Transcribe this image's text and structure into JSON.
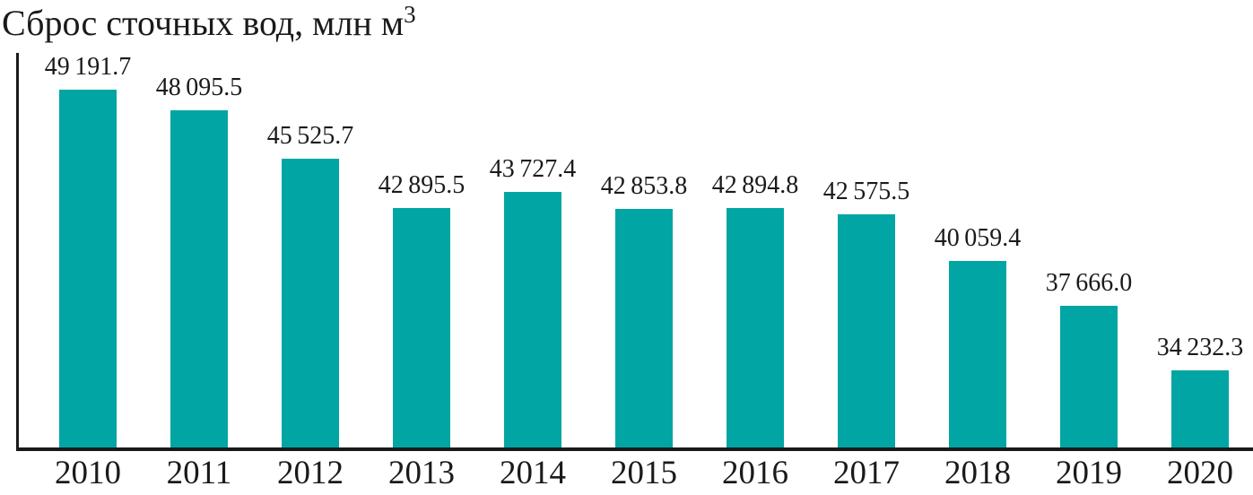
{
  "chart_data": {
    "type": "bar",
    "title": "Сброс сточных вод, млн м",
    "title_superscript": "3",
    "title_full": "Сброс сточных вод, млн м3",
    "categories": [
      "2010",
      "2011",
      "2012",
      "2013",
      "2014",
      "2015",
      "2016",
      "2017",
      "2018",
      "2019",
      "2020"
    ],
    "values": [
      49191.7,
      48095.5,
      45525.7,
      42895.5,
      43727.4,
      42853.8,
      42894.8,
      42575.5,
      40059.4,
      37666.0,
      34232.3
    ],
    "value_labels": [
      "49 191.7",
      "48 095.5",
      "45 525.7",
      "42 895.5",
      "43 727.4",
      "42 853.8",
      "42 894.8",
      "42 575.5",
      "40 059.4",
      "37 666.0",
      "34 232.3"
    ],
    "xlabel": "",
    "ylabel": "",
    "ylim": [
      30000,
      51000
    ],
    "y_ticks_visible": false,
    "grid": false,
    "legend": false,
    "bar_color": "#00A5A4",
    "axis_color": "#1a1a1a",
    "text_color": "#1a1a1a"
  }
}
